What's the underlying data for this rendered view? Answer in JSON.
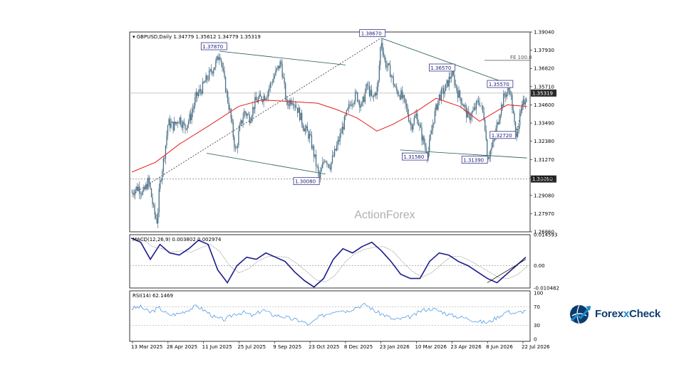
{
  "main_header": "GBPUSD,Daily  1.34779 1.35612 1.34779 1.35319",
  "watermark": "ActionForex",
  "brand": {
    "part1": "Forex",
    "x": "x",
    "part2": "Check"
  },
  "colors": {
    "candle": "#4a6f86",
    "ma": "#e21e1e",
    "macd": "#1a1a8c",
    "signal": "#888888",
    "rsi": "#3d8fe0",
    "trend": "#1d5a4a"
  },
  "chart_data": [
    {
      "type": "candlestick",
      "symbol": "GBPUSD",
      "timeframe": "Daily",
      "ylim": [
        1.2686,
        1.3904
      ],
      "yticks": [
        "1.39040",
        "1.37930",
        "1.36820",
        "1.35710",
        "1.34600",
        "1.33490",
        "1.32380",
        "1.31270",
        "1.30160",
        "1.29080",
        "1.27970",
        "1.26860"
      ],
      "current_price": "1.35319",
      "xticks": [
        "13 Mar 2025",
        "28 Apr 2025",
        "11 Jun 2025",
        "25 Jul 2025",
        "9 Sep 2025",
        "23 Oct 2025",
        "8 Dec 2025",
        "23 Jan 2026",
        "10 Mar 2026",
        "23 Apr 2026",
        "8 Jun 2026",
        "22 Jul 2026"
      ],
      "close_path": [
        [
          "13 Mar 2025",
          1.293
        ],
        [
          "20 Mar 2025",
          1.296
        ],
        [
          "27 Mar 2025",
          1.292
        ],
        [
          "3 Apr 2025",
          1.3
        ],
        [
          "10 Apr 2025",
          1.28
        ],
        [
          "14 Apr 2025",
          1.275
        ],
        [
          "17 Apr 2025",
          1.296
        ],
        [
          "24 Apr 2025",
          1.318
        ],
        [
          "28 Apr 2025",
          1.335
        ],
        [
          "5 May 2025",
          1.333
        ],
        [
          "12 May 2025",
          1.338
        ],
        [
          "19 May 2025",
          1.332
        ],
        [
          "26 May 2025",
          1.339
        ],
        [
          "2 Jun 2025",
          1.351
        ],
        [
          "9 Jun 2025",
          1.356
        ],
        [
          "13 Jun 2025",
          1.36
        ],
        [
          "20 Jun 2025",
          1.366
        ],
        [
          "27 Jun 2025",
          1.372
        ],
        [
          "1 Jul 2025",
          1.3787
        ],
        [
          "7 Jul 2025",
          1.36
        ],
        [
          "14 Jul 2025",
          1.341
        ],
        [
          "21 Jul 2025",
          1.316
        ],
        [
          "25 Jul 2025",
          1.33
        ],
        [
          "1 Aug 2025",
          1.342
        ],
        [
          "8 Aug 2025",
          1.338
        ],
        [
          "15 Aug 2025",
          1.348
        ],
        [
          "22 Aug 2025",
          1.35
        ],
        [
          "29 Aug 2025",
          1.352
        ],
        [
          "9 Sep 2025",
          1.364
        ],
        [
          "17 Sep 2025",
          1.372
        ],
        [
          "24 Sep 2025",
          1.346
        ],
        [
          "1 Oct 2025",
          1.35
        ],
        [
          "8 Oct 2025",
          1.343
        ],
        [
          "15 Oct 2025",
          1.333
        ],
        [
          "23 Oct 2025",
          1.326
        ],
        [
          "28 Oct 2025",
          1.316
        ],
        [
          "4 Nov 2025",
          1.3008
        ],
        [
          "11 Nov 2025",
          1.314
        ],
        [
          "18 Nov 2025",
          1.309
        ],
        [
          "25 Nov 2025",
          1.318
        ],
        [
          "1 Dec 2025",
          1.327
        ],
        [
          "8 Dec 2025",
          1.338
        ],
        [
          "15 Dec 2025",
          1.348
        ],
        [
          "22 Dec 2025",
          1.352
        ],
        [
          "29 Dec 2025",
          1.345
        ],
        [
          "5 Jan 2026",
          1.358
        ],
        [
          "12 Jan 2026",
          1.349
        ],
        [
          "19 Jan 2026",
          1.357
        ],
        [
          "23 Jan 2026",
          1.3867
        ],
        [
          "28 Jan 2026",
          1.372
        ],
        [
          "4 Feb 2026",
          1.366
        ],
        [
          "11 Feb 2026",
          1.355
        ],
        [
          "18 Feb 2026",
          1.352
        ],
        [
          "25 Feb 2026",
          1.344
        ],
        [
          "3 Mar 2026",
          1.333
        ],
        [
          "10 Mar 2026",
          1.34
        ],
        [
          "17 Mar 2026",
          1.326
        ],
        [
          "24 Mar 2026",
          1.3158
        ],
        [
          "31 Mar 2026",
          1.337
        ],
        [
          "7 Apr 2026",
          1.351
        ],
        [
          "14 Apr 2026",
          1.355
        ],
        [
          "23 Apr 2026",
          1.3657
        ],
        [
          "30 Apr 2026",
          1.354
        ],
        [
          "7 May 2026",
          1.347
        ],
        [
          "14 May 2026",
          1.338
        ],
        [
          "21 May 2026",
          1.342
        ],
        [
          "28 May 2026",
          1.349
        ],
        [
          "4 Jun 2026",
          1.338
        ],
        [
          "8 Jun 2026",
          1.3139
        ],
        [
          "15 Jun 2026",
          1.322
        ],
        [
          "22 Jun 2026",
          1.339
        ],
        [
          "29 Jun 2026",
          1.352
        ],
        [
          "6 Jul 2026",
          1.3557
        ],
        [
          "13 Jul 2026",
          1.3272
        ],
        [
          "22 Jul 2026",
          1.346
        ],
        [
          "27 Jul 2026",
          1.35319
        ]
      ],
      "ma_path": [
        [
          1.305,
          0
        ],
        [
          1.311,
          0.06
        ],
        [
          1.322,
          0.12
        ],
        [
          1.334,
          0.2
        ],
        [
          1.345,
          0.27
        ],
        [
          1.349,
          0.33
        ],
        [
          1.348,
          0.4
        ],
        [
          1.347,
          0.47
        ],
        [
          1.343,
          0.52
        ],
        [
          1.338,
          0.57
        ],
        [
          1.33,
          0.62
        ],
        [
          1.334,
          0.66
        ],
        [
          1.342,
          0.72
        ],
        [
          1.35,
          0.77
        ],
        [
          1.345,
          0.83
        ],
        [
          1.336,
          0.88
        ],
        [
          1.346,
          0.95
        ],
        [
          1.345,
          1.0
        ]
      ],
      "annotations": [
        {
          "label": "1.37870",
          "date": "1 Jul 2025",
          "value": 1.3787
        },
        {
          "label": "1.38670",
          "date": "23 Jan 2026",
          "value": 1.3867
        },
        {
          "label": "1.36570",
          "date": "23 Apr 2026",
          "value": 1.3657
        },
        {
          "label": "1.35570",
          "date": "6 Jul 2026",
          "value": 1.3557
        },
        {
          "label": "1.32720",
          "date": "13 Jul 2026",
          "value": 1.3272
        },
        {
          "label": "1.31580",
          "date": "24 Mar 2026",
          "value": 1.3158
        },
        {
          "label": "1.31390",
          "date": "8 Jun 2026",
          "value": 1.3139
        },
        {
          "label": "1.30080",
          "date": "4 Nov 2025",
          "value": 1.3008
        }
      ],
      "level_label": "1.30080",
      "fe_label": "FE 100.0",
      "fe_value": 1.3731
    },
    {
      "type": "line",
      "title": "MACD(12,26,9) 0.003802 0.002974",
      "ylim": [
        -0.010482,
        0.014593
      ],
      "yticks": [
        "0.014593",
        "0.00",
        "-0.010482"
      ],
      "macd_path": [
        0.013,
        0.011,
        0.003,
        0.01,
        0.006,
        0.005,
        0.008,
        0.012,
        0.01,
        -0.002,
        -0.008,
        0.0,
        0.004,
        0.003,
        0.006,
        0.004,
        0.002,
        -0.003,
        -0.007,
        -0.01,
        -0.006,
        0.003,
        0.008,
        0.006,
        0.009,
        0.011,
        0.007,
        0.002,
        -0.004,
        -0.006,
        -0.006,
        0.002,
        0.006,
        0.005,
        0.002,
        0.0,
        -0.003,
        -0.006,
        -0.008,
        -0.004,
        0.0,
        0.004
      ]
    },
    {
      "type": "line",
      "title": "RSI(14) 62.1469",
      "ylim": [
        0,
        100
      ],
      "yticks": [
        "100",
        "70",
        "30",
        "0"
      ],
      "rsi_path": [
        66,
        70,
        58,
        68,
        52,
        55,
        63,
        72,
        60,
        46,
        42,
        55,
        58,
        50,
        64,
        53,
        50,
        44,
        40,
        31,
        48,
        56,
        64,
        61,
        70,
        75,
        60,
        52,
        42,
        45,
        50,
        63,
        66,
        60,
        52,
        48,
        44,
        38,
        36,
        48,
        60,
        56,
        62
      ]
    }
  ]
}
